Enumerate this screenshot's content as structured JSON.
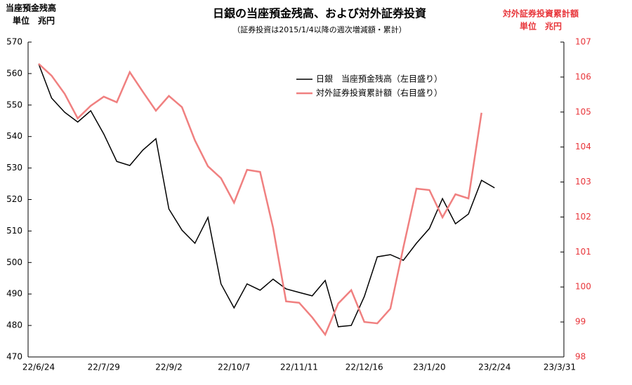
{
  "chart_data": {
    "type": "line",
    "title": "日銀の当座預金残高、および対外証券投資",
    "subtitle": "（証券投資は2015/1/4以降の週次増減額・累計）",
    "y_label": "当座預金残高",
    "y_unit": "単位　兆円",
    "y2_label": "対外証券投資累計額",
    "y2_unit": "単位　兆円",
    "categories": [
      "22/6/24",
      null,
      null,
      null,
      null,
      "22/7/29",
      null,
      null,
      null,
      null,
      "22/9/2",
      null,
      null,
      null,
      null,
      "22/10/7",
      null,
      null,
      null,
      null,
      "22/11/11",
      null,
      null,
      null,
      null,
      "22/12/16",
      null,
      null,
      null,
      null,
      "23/1/20",
      null,
      null,
      null,
      null,
      "23/2/24",
      null,
      null,
      null,
      null,
      "23/3/31"
    ],
    "series": [
      {
        "name": "日銀　当座預金残高（左目盛り）",
        "color": "#000000",
        "axis": "y",
        "values": [
          563.1,
          552.2,
          547.7,
          544.6,
          548.2,
          540.8,
          532.1,
          530.8,
          535.7,
          539.3,
          517.0,
          510.3,
          506.1,
          514.3,
          493.2,
          485.6,
          493.2,
          491.2,
          494.7,
          491.6,
          490.5,
          489.4,
          494.3,
          479.6,
          480.0,
          489.2,
          501.8,
          502.5,
          500.7,
          506.1,
          510.8,
          520.3,
          512.3,
          515.4,
          526.1,
          523.7,
          null,
          null,
          null,
          null,
          null
        ]
      },
      {
        "name": "対外証券投資累計額（右目盛り）",
        "color": "#f08080",
        "axis": "y2",
        "values": [
          106.38,
          106.04,
          105.52,
          104.82,
          105.18,
          105.44,
          105.28,
          106.14,
          105.58,
          105.04,
          105.46,
          105.14,
          104.19,
          103.45,
          103.11,
          102.41,
          103.35,
          103.29,
          101.69,
          99.59,
          99.55,
          99.13,
          98.64,
          99.53,
          99.91,
          99.0,
          98.96,
          99.38,
          101.13,
          102.81,
          102.77,
          101.99,
          102.65,
          102.53,
          104.98,
          null,
          null,
          null,
          null,
          null,
          null
        ]
      }
    ],
    "ylim": [
      470,
      570
    ],
    "yticks": [
      470,
      480,
      490,
      500,
      510,
      520,
      530,
      540,
      550,
      560,
      570
    ],
    "y2lim": [
      98,
      107
    ],
    "y2ticks": [
      98,
      99,
      100,
      101,
      102,
      103,
      104,
      105,
      106,
      107
    ],
    "y2_color": "#e8353a"
  }
}
